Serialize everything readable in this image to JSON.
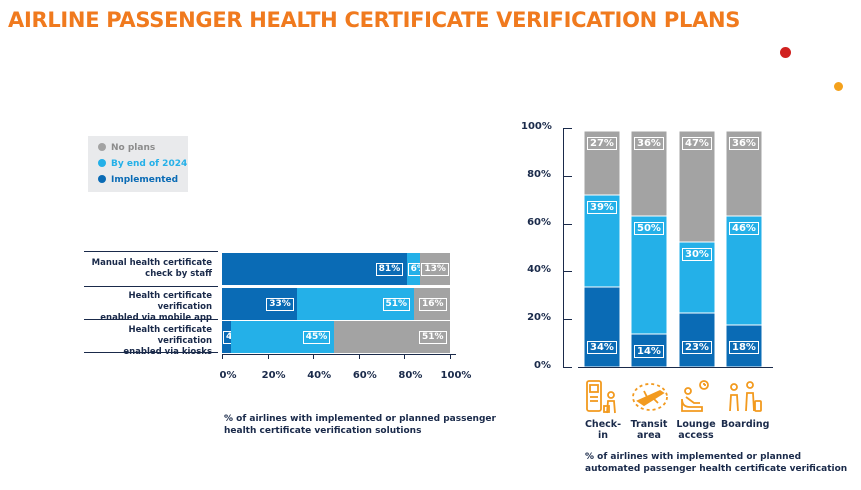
{
  "title": "AIRLINE PASSENGER HEALTH CERTIFICATE VERIFICATION PLANS",
  "colors": {
    "implemented": "#0a6bb5",
    "by_end_2024": "#24b0e8",
    "no_plans": "#a3a3a3",
    "accent": "#f07a1e"
  },
  "legend": [
    {
      "label": "No plans",
      "color": "#a3a3a3"
    },
    {
      "label": "By end of 2024",
      "color": "#24b0e8"
    },
    {
      "label": "Implemented",
      "color": "#0a6bb5"
    }
  ],
  "chart_data": [
    {
      "type": "bar",
      "orientation": "horizontal",
      "stacked": true,
      "categories": [
        "Manual health certificate check by staff",
        "Health certificate verification enabled via mobile app",
        "Health certificate verification enabled via kiosks"
      ],
      "series": [
        {
          "name": "Implemented",
          "values": [
            81,
            33,
            4
          ]
        },
        {
          "name": "By end of 2024",
          "values": [
            6,
            51,
            45
          ]
        },
        {
          "name": "No plans",
          "values": [
            13,
            16,
            51
          ]
        }
      ],
      "xticks": [
        "0%",
        "20%",
        "40%",
        "60%",
        "80%",
        "100%"
      ],
      "xlim": [
        0,
        100
      ],
      "caption": "% of airlines with implemented or planned passenger health certificate verification solutions",
      "legend_position": "top-left"
    },
    {
      "type": "bar",
      "orientation": "vertical",
      "stacked": true,
      "categories": [
        "Check-in",
        "Transit area",
        "Lounge access",
        "Boarding"
      ],
      "series": [
        {
          "name": "Implemented",
          "values": [
            34,
            14,
            23,
            18
          ]
        },
        {
          "name": "By end of 2024",
          "values": [
            39,
            50,
            30,
            46
          ]
        },
        {
          "name": "No plans",
          "values": [
            27,
            36,
            47,
            36
          ]
        }
      ],
      "yticks": [
        "100%",
        "80%",
        "60%",
        "40%",
        "20%",
        "0%"
      ],
      "ylim": [
        0,
        100
      ],
      "caption": "% of airlines with implemented or planned automated passenger health certificate verification"
    }
  ],
  "left_labels": [
    [
      "Manual health certificate",
      "check by staff"
    ],
    [
      "Health certificate verification",
      "enabled via mobile app"
    ],
    [
      "Health certificate verification",
      "enabled via kiosks"
    ]
  ],
  "right_labels": [
    [
      "Check-in"
    ],
    [
      "Transit",
      "area"
    ],
    [
      "Lounge",
      "access"
    ],
    [
      "Boarding"
    ]
  ],
  "captions": {
    "left": [
      "% of airlines with implemented or planned passenger",
      "health certificate verification solutions"
    ],
    "right": [
      "% of airlines with implemented or planned",
      "automated passenger health certificate verification"
    ]
  },
  "icons": [
    "check-in-kiosk-icon",
    "transit-plane-icon",
    "lounge-chair-icon",
    "boarding-passengers-icon"
  ]
}
